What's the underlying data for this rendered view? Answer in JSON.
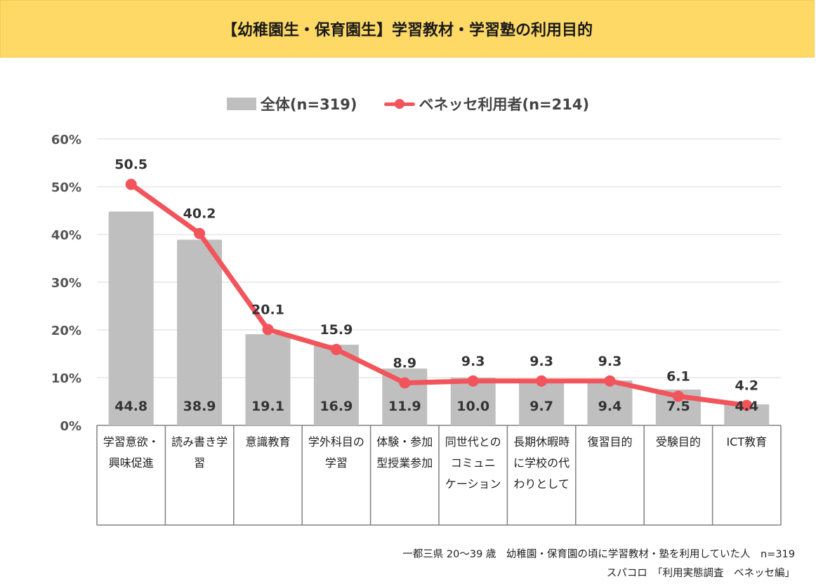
{
  "title": "【幼稚園生・保育園生】学習教材・学習塾の利用目的",
  "legend": {
    "bar_label": "全体(n=319)",
    "line_label": "ベネッセ利用者(n=214)"
  },
  "colors": {
    "bar": "#BFBFBF",
    "line": "#F2545B",
    "title_bg": "#FFD966",
    "grid": "#D9D9D9"
  },
  "chart_data": {
    "type": "bar",
    "title": "【幼稚園生・保育園生】学習教材・学習塾の利用目的",
    "ylim": [
      0,
      60
    ],
    "yticks": [
      "0%",
      "10%",
      "20%",
      "30%",
      "40%",
      "50%",
      "60%"
    ],
    "categories": [
      [
        "学習意欲・",
        "興味促進"
      ],
      [
        "読み書き学",
        "習"
      ],
      [
        "意識教育"
      ],
      [
        "学外科目の",
        "学習"
      ],
      [
        "体験・参加",
        "型授業参加"
      ],
      [
        "同世代との",
        "コミュニ",
        "ケーション"
      ],
      [
        "長期休暇時",
        "に学校の代",
        "わりとして"
      ],
      [
        "復習目的"
      ],
      [
        "受験目的"
      ],
      [
        "ICT教育"
      ]
    ],
    "series": [
      {
        "name": "全体(n=319)",
        "kind": "bar",
        "values": [
          44.8,
          38.9,
          19.1,
          16.9,
          11.9,
          10.0,
          9.7,
          9.4,
          7.5,
          4.4
        ],
        "labels": [
          "44.8",
          "38.9",
          "19.1",
          "16.9",
          "11.9",
          "10.0",
          "9.7",
          "9.4",
          "7.5",
          "4.4"
        ]
      },
      {
        "name": "ベネッセ利用者(n=214)",
        "kind": "line",
        "values": [
          50.5,
          40.2,
          20.1,
          15.9,
          8.9,
          9.3,
          9.3,
          9.3,
          6.1,
          4.2
        ],
        "labels": [
          "50.5",
          "40.2",
          "20.1",
          "15.9",
          "8.9",
          "9.3",
          "9.3",
          "9.3",
          "6.1",
          "4.2"
        ]
      }
    ]
  },
  "footnote": {
    "line1": "一都三県 20～39 歳　幼稚園・保育園の頃に学習教材・塾を利用していた人　n=319",
    "line2": "スパコロ　「利用実態調査　ベネッセ編」"
  }
}
